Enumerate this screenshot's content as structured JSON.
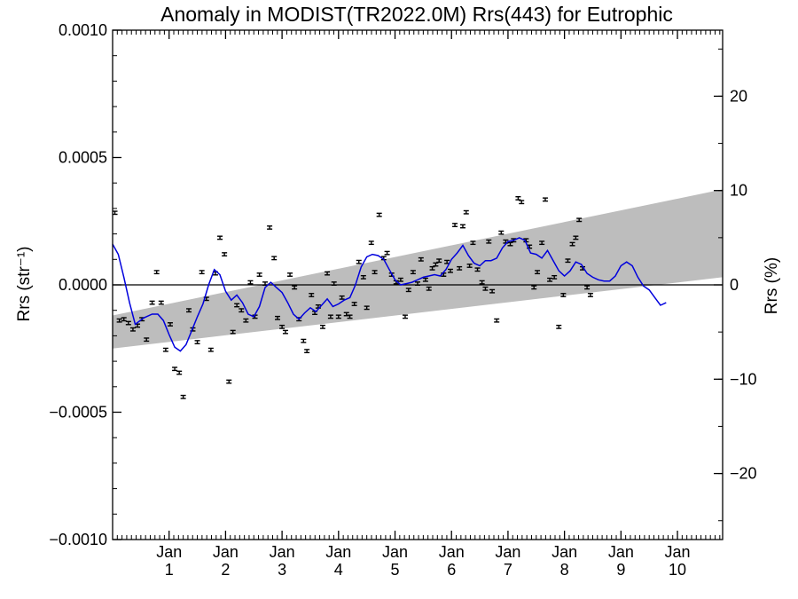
{
  "chart_data": {
    "type": "line",
    "title": "Anomaly in MODIST(TR2022.0M) Rrs(443) for Eutrophic",
    "ylabel": "Rrs (str⁻¹)",
    "ylabel_right": "Rrs (%)",
    "ylim": [
      -0.001,
      0.001
    ],
    "ylim_right": [
      -27,
      27
    ],
    "xlim": [
      0,
      10.8
    ],
    "x_ticks": [
      {
        "x": 1,
        "label_top": "Jan",
        "label_bottom": "1"
      },
      {
        "x": 2,
        "label_top": "Jan",
        "label_bottom": "2"
      },
      {
        "x": 3,
        "label_top": "Jan",
        "label_bottom": "3"
      },
      {
        "x": 4,
        "label_top": "Jan",
        "label_bottom": "4"
      },
      {
        "x": 5,
        "label_top": "Jan",
        "label_bottom": "5"
      },
      {
        "x": 6,
        "label_top": "Jan",
        "label_bottom": "6"
      },
      {
        "x": 7,
        "label_top": "Jan",
        "label_bottom": "7"
      },
      {
        "x": 8,
        "label_top": "Jan",
        "label_bottom": "8"
      },
      {
        "x": 9,
        "label_top": "Jan",
        "label_bottom": "9"
      },
      {
        "x": 10,
        "label_top": "Jan",
        "label_bottom": "10"
      }
    ],
    "y_ticks_left": [
      {
        "value": 0.001,
        "label": "0.0010"
      },
      {
        "value": 0.0005,
        "label": "0.0005"
      },
      {
        "value": 0.0,
        "label": "0.0000"
      },
      {
        "value": -0.0005,
        "label": "−0.0005"
      },
      {
        "value": -0.001,
        "label": "−0.0010"
      }
    ],
    "y_ticks_right": [
      {
        "value": 20,
        "label": "20"
      },
      {
        "value": 10,
        "label": "10"
      },
      {
        "value": 0,
        "label": "0"
      },
      {
        "value": -10,
        "label": "−10"
      },
      {
        "value": -20,
        "label": "−20"
      }
    ],
    "reference_line": 0,
    "colors": {
      "band": "#bdbdbd",
      "smooth_line": "#0000dd",
      "points": "#000000"
    },
    "band": {
      "x": [
        0,
        10.8
      ],
      "lower": [
        -0.00025,
        3e-05
      ],
      "upper": [
        -0.00012,
        0.000375
      ]
    },
    "points_error": 6e-06,
    "points": [
      [
        0.04,
        0.000283
      ],
      [
        0.12,
        -0.00014
      ],
      [
        0.2,
        -0.000135
      ],
      [
        0.28,
        -0.00015
      ],
      [
        0.36,
        -0.000175
      ],
      [
        0.44,
        -0.00016
      ],
      [
        0.52,
        -0.000135
      ],
      [
        0.6,
        -0.000215
      ],
      [
        0.7,
        -7e-05
      ],
      [
        0.78,
        5e-05
      ],
      [
        0.86,
        -7e-05
      ],
      [
        0.94,
        -0.000255
      ],
      [
        1.02,
        -0.000155
      ],
      [
        1.1,
        -0.00033
      ],
      [
        1.18,
        -0.000345
      ],
      [
        1.25,
        -0.00044
      ],
      [
        1.35,
        -0.0001
      ],
      [
        1.42,
        -0.000175
      ],
      [
        1.5,
        -0.000225
      ],
      [
        1.58,
        5e-05
      ],
      [
        1.66,
        -5.5e-05
      ],
      [
        1.74,
        -0.000255
      ],
      [
        1.82,
        4.5e-05
      ],
      [
        1.9,
        0.000185
      ],
      [
        1.98,
        0.00012
      ],
      [
        2.06,
        -0.00038
      ],
      [
        2.13,
        -0.000185
      ],
      [
        2.2,
        -8e-05
      ],
      [
        2.28,
        -0.0001
      ],
      [
        2.36,
        -0.00014
      ],
      [
        2.44,
        1e-05
      ],
      [
        2.52,
        -0.000125
      ],
      [
        2.6,
        4e-05
      ],
      [
        2.7,
        5e-06
      ],
      [
        2.78,
        0.000225
      ],
      [
        2.86,
        0.000105
      ],
      [
        2.92,
        -0.00013
      ],
      [
        3.0,
        -0.000165
      ],
      [
        3.06,
        -0.000185
      ],
      [
        3.14,
        4e-05
      ],
      [
        3.22,
        -1e-05
      ],
      [
        3.3,
        -0.000135
      ],
      [
        3.38,
        -0.00022
      ],
      [
        3.44,
        -0.00026
      ],
      [
        3.52,
        -4e-05
      ],
      [
        3.58,
        -0.00011
      ],
      [
        3.64,
        -8.5e-05
      ],
      [
        3.72,
        -0.000165
      ],
      [
        3.8,
        4.5e-05
      ],
      [
        3.86,
        -0.000125
      ],
      [
        3.92,
        5e-06
      ],
      [
        4.0,
        -0.000125
      ],
      [
        4.06,
        -5e-05
      ],
      [
        4.14,
        -0.000115
      ],
      [
        4.2,
        -0.000125
      ],
      [
        4.28,
        -7.5e-05
      ],
      [
        4.36,
        9e-05
      ],
      [
        4.44,
        3e-05
      ],
      [
        4.5,
        -9e-05
      ],
      [
        4.58,
        0.000165
      ],
      [
        4.64,
        5e-05
      ],
      [
        4.72,
        0.000275
      ],
      [
        4.8,
        0.000105
      ],
      [
        4.86,
        0.000125
      ],
      [
        4.94,
        4e-05
      ],
      [
        5.02,
        1e-05
      ],
      [
        5.1,
        2e-05
      ],
      [
        5.18,
        -0.000125
      ],
      [
        5.24,
        -2e-05
      ],
      [
        5.32,
        5e-05
      ],
      [
        5.4,
        5e-06
      ],
      [
        5.46,
        0.0001
      ],
      [
        5.54,
        2e-05
      ],
      [
        5.6,
        -1.5e-05
      ],
      [
        5.66,
        6.5e-05
      ],
      [
        5.72,
        8e-05
      ],
      [
        5.78,
        9.5e-05
      ],
      [
        5.86,
        4e-05
      ],
      [
        5.92,
        9e-05
      ],
      [
        5.98,
        5.5e-05
      ],
      [
        6.06,
        0.000235
      ],
      [
        6.14,
        6.5e-05
      ],
      [
        6.2,
        0.00023
      ],
      [
        6.26,
        0.000285
      ],
      [
        6.32,
        7.5e-05
      ],
      [
        6.38,
        0.000165
      ],
      [
        6.46,
        6e-05
      ],
      [
        6.54,
        1e-05
      ],
      [
        6.6,
        -1.5e-05
      ],
      [
        6.66,
        0.00017
      ],
      [
        6.72,
        -2.5e-05
      ],
      [
        6.8,
        -0.00014
      ],
      [
        6.88,
        0.000205
      ],
      [
        6.96,
        0.00017
      ],
      [
        7.04,
        0.00016
      ],
      [
        7.1,
        0.000175
      ],
      [
        7.18,
        0.00034
      ],
      [
        7.24,
        0.000325
      ],
      [
        7.32,
        0.000175
      ],
      [
        7.38,
        0.00015
      ],
      [
        7.46,
        -1e-05
      ],
      [
        7.52,
        5e-05
      ],
      [
        7.6,
        0.000165
      ],
      [
        7.66,
        0.000335
      ],
      [
        7.74,
        2e-05
      ],
      [
        7.82,
        3e-05
      ],
      [
        7.9,
        -0.000165
      ],
      [
        7.98,
        -4e-05
      ],
      [
        8.06,
        9.5e-05
      ],
      [
        8.14,
        0.00016
      ],
      [
        8.2,
        0.000185
      ],
      [
        8.26,
        0.000255
      ],
      [
        8.32,
        6.5e-05
      ],
      [
        8.4,
        -1e-05
      ],
      [
        8.46,
        -4e-05
      ]
    ],
    "smooth_line": [
      [
        0.0,
        0.00016
      ],
      [
        0.1,
        0.00012
      ],
      [
        0.2,
        3e-05
      ],
      [
        0.3,
        -7e-05
      ],
      [
        0.4,
        -0.000155
      ],
      [
        0.55,
        -0.00013
      ],
      [
        0.7,
        -0.000115
      ],
      [
        0.8,
        -0.000115
      ],
      [
        0.9,
        -0.00014
      ],
      [
        1.0,
        -0.000195
      ],
      [
        1.1,
        -0.000245
      ],
      [
        1.2,
        -0.00026
      ],
      [
        1.3,
        -0.000235
      ],
      [
        1.4,
        -0.00018
      ],
      [
        1.5,
        -0.000125
      ],
      [
        1.6,
        -7.5e-05
      ],
      [
        1.7,
        0.0
      ],
      [
        1.8,
        6e-05
      ],
      [
        1.9,
        4e-05
      ],
      [
        2.0,
        -2.5e-05
      ],
      [
        2.1,
        -6e-05
      ],
      [
        2.2,
        -4e-05
      ],
      [
        2.3,
        -7e-05
      ],
      [
        2.4,
        -0.000115
      ],
      [
        2.5,
        -0.000125
      ],
      [
        2.6,
        -8.5e-05
      ],
      [
        2.7,
        -1e-05
      ],
      [
        2.8,
        1e-05
      ],
      [
        2.9,
        -1e-05
      ],
      [
        3.0,
        -3e-05
      ],
      [
        3.1,
        -7e-05
      ],
      [
        3.2,
        -0.000115
      ],
      [
        3.3,
        -0.000135
      ],
      [
        3.4,
        -0.00011
      ],
      [
        3.5,
        -9e-05
      ],
      [
        3.6,
        -0.000105
      ],
      [
        3.7,
        -8e-05
      ],
      [
        3.8,
        -5.5e-05
      ],
      [
        3.9,
        -8.5e-05
      ],
      [
        4.0,
        -7.5e-05
      ],
      [
        4.1,
        -6e-05
      ],
      [
        4.2,
        -5e-05
      ],
      [
        4.3,
        0.0
      ],
      [
        4.4,
        7e-05
      ],
      [
        4.5,
        0.00011
      ],
      [
        4.6,
        0.00012
      ],
      [
        4.7,
        0.000115
      ],
      [
        4.8,
        0.0001
      ],
      [
        4.9,
        6e-05
      ],
      [
        5.0,
        2e-05
      ],
      [
        5.1,
        0.0
      ],
      [
        5.2,
        5e-06
      ],
      [
        5.3,
        1e-05
      ],
      [
        5.4,
        2e-05
      ],
      [
        5.5,
        3e-05
      ],
      [
        5.6,
        3.5e-05
      ],
      [
        5.7,
        4e-05
      ],
      [
        5.8,
        3.5e-05
      ],
      [
        5.9,
        6e-05
      ],
      [
        6.0,
        0.0001
      ],
      [
        6.1,
        0.000125
      ],
      [
        6.2,
        0.000155
      ],
      [
        6.3,
        0.000115
      ],
      [
        6.4,
        8.5e-05
      ],
      [
        6.5,
        7.5e-05
      ],
      [
        6.6,
        9.5e-05
      ],
      [
        6.7,
        9.5e-05
      ],
      [
        6.8,
        0.000105
      ],
      [
        6.9,
        0.000145
      ],
      [
        7.0,
        0.00017
      ],
      [
        7.1,
        0.000175
      ],
      [
        7.2,
        0.000185
      ],
      [
        7.3,
        0.000175
      ],
      [
        7.4,
        0.000125
      ],
      [
        7.5,
        0.00012
      ],
      [
        7.6,
        0.000105
      ],
      [
        7.7,
        0.000135
      ],
      [
        7.8,
        9.5e-05
      ],
      [
        7.9,
        5.5e-05
      ],
      [
        8.0,
        3.5e-05
      ],
      [
        8.1,
        5.5e-05
      ],
      [
        8.2,
        9e-05
      ],
      [
        8.3,
        8e-05
      ],
      [
        8.4,
        4.5e-05
      ],
      [
        8.5,
        3e-05
      ],
      [
        8.6,
        2e-05
      ],
      [
        8.7,
        1.5e-05
      ],
      [
        8.8,
        1.5e-05
      ],
      [
        8.9,
        3.5e-05
      ],
      [
        9.0,
        7.5e-05
      ],
      [
        9.1,
        9e-05
      ],
      [
        9.2,
        7.5e-05
      ],
      [
        9.3,
        3e-05
      ],
      [
        9.4,
        -5e-06
      ],
      [
        9.5,
        -2e-05
      ],
      [
        9.6,
        -5e-05
      ],
      [
        9.7,
        -8e-05
      ],
      [
        9.8,
        -7e-05
      ]
    ]
  }
}
